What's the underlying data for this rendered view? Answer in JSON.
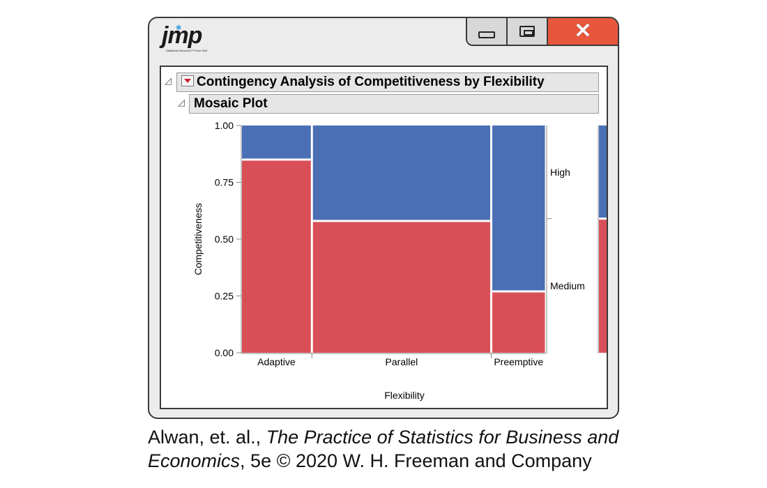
{
  "window": {
    "logo": {
      "text": "jmp",
      "subtext": "Statistical Discovery™ From SAS."
    },
    "buttons": {
      "close_glyph": "✕"
    }
  },
  "report": {
    "outline_title": "Contingency Analysis of Competitiveness by Flexibility",
    "section_title": "Mosaic Plot"
  },
  "chart_data": {
    "type": "mosaic",
    "xlabel": "Flexibility",
    "ylabel": "Competitiveness",
    "ylim": [
      0,
      1
    ],
    "yticks": [
      "0.00",
      "0.25",
      "0.50",
      "0.75",
      "1.00"
    ],
    "categories": [
      "Adaptive",
      "Parallel",
      "Preemptive"
    ],
    "column_widths": [
      0.23,
      0.59,
      0.18
    ],
    "series": [
      {
        "name": "Medium",
        "values": [
          0.85,
          0.58,
          0.27
        ],
        "color": "#d94f57"
      },
      {
        "name": "High",
        "values": [
          0.15,
          0.42,
          0.73
        ],
        "color": "#4a6fb5"
      }
    ],
    "marginal": {
      "Medium": 0.59,
      "High": 0.41
    },
    "legend": "right"
  },
  "caption": {
    "authors": "Alwan, et. al., ",
    "book": "The Practice of Statistics for Business and",
    "book2": "Economics",
    "rest": ", 5e © 2020 W. H. Freeman and Company"
  }
}
